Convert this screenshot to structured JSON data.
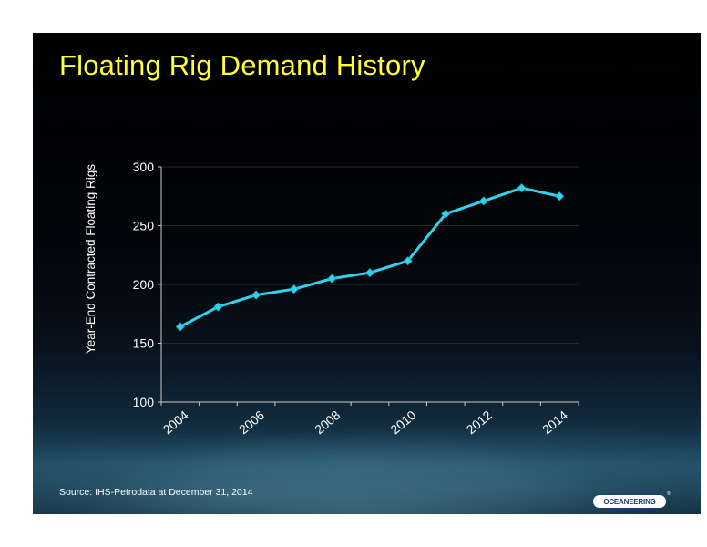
{
  "slide": {
    "title": "Floating Rig Demand History",
    "source": "Source:  IHS-Petrodata at December 31, 2014",
    "logo_text": "OCEANEERING",
    "logo_mark": "®"
  },
  "chart_data": {
    "type": "line",
    "title": "",
    "xlabel": "",
    "ylabel": "Year-End Contracted Floating Rigs",
    "x": [
      2004,
      2005,
      2006,
      2007,
      2008,
      2009,
      2010,
      2011,
      2012,
      2013,
      2014
    ],
    "xticks": [
      "2004",
      "2006",
      "2008",
      "2010",
      "2012",
      "2014"
    ],
    "yticks": [
      "100",
      "150",
      "200",
      "250",
      "300"
    ],
    "ylim": [
      100,
      300
    ],
    "grid": true,
    "series": [
      {
        "values": [
          164,
          181,
          191,
          196,
          205,
          210,
          220,
          260,
          271,
          282,
          275
        ]
      }
    ],
    "colors": {
      "line": "#2fd4ec",
      "marker": "#2fd4ec",
      "grid": "#2a2a2a",
      "axis": "#cccccc",
      "text": "#ffffff"
    }
  }
}
